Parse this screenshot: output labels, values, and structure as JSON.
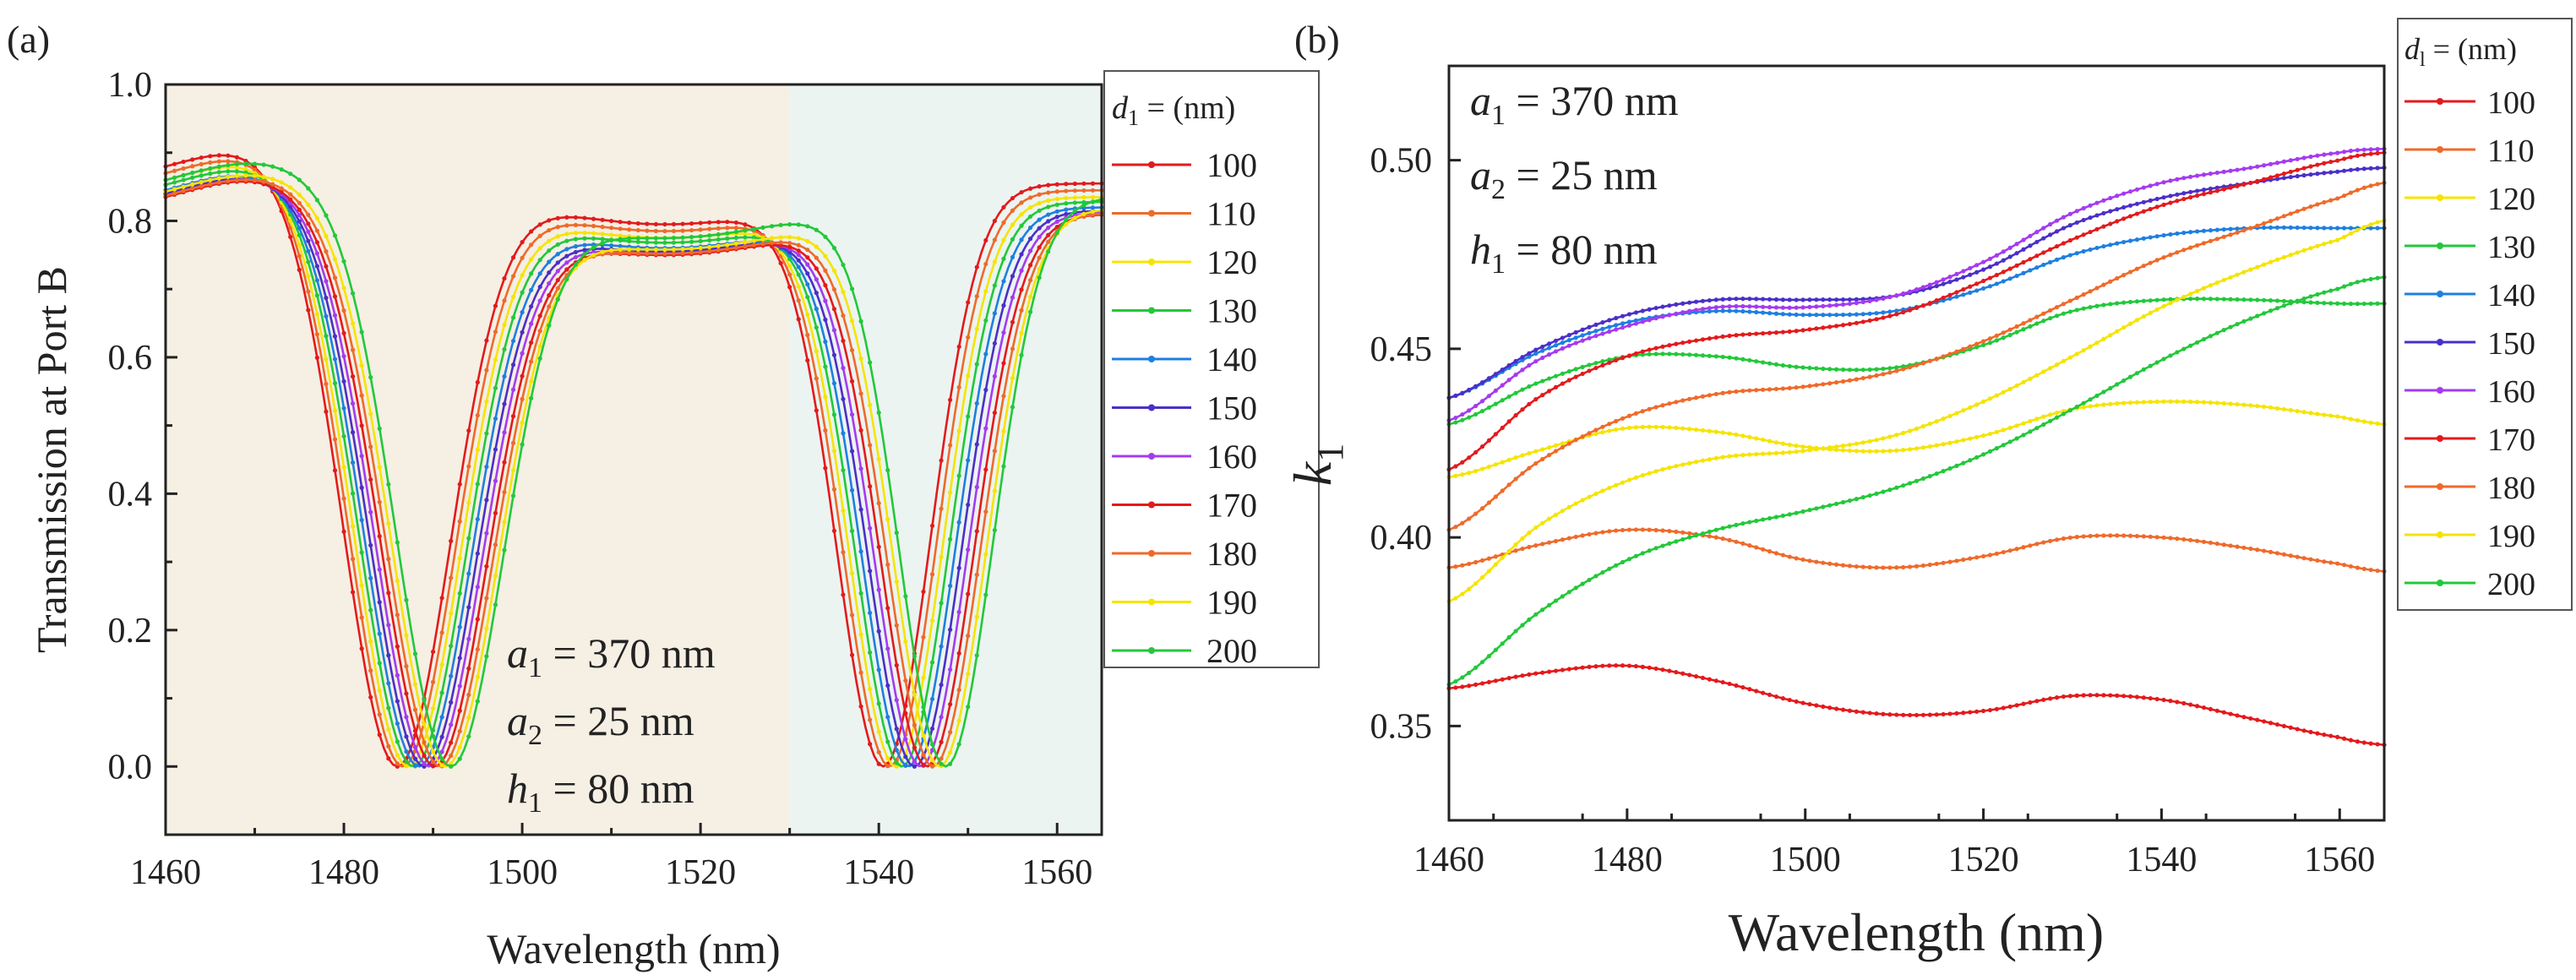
{
  "chart_data": [
    {
      "type": "line",
      "panel_label": "(a)",
      "xlabel": "Wavelength (nm)",
      "ylabel": "Transmission at Port B",
      "xlim": [
        1460,
        1565
      ],
      "ylim": [
        -0.1,
        1.0
      ],
      "xticks": [
        "1460",
        "1480",
        "1500",
        "1520",
        "1540",
        "1560"
      ],
      "yticks": [
        "0.0",
        "0.2",
        "0.4",
        "0.6",
        "0.8",
        "1.0"
      ],
      "shaded_regions": [
        {
          "x_from": 1460,
          "x_to": 1530,
          "color": "#f5efe4"
        },
        {
          "x_from": 1530,
          "x_to": 1565,
          "color": "#ecf4f1"
        }
      ],
      "legend_title": {
        "var": "d",
        "sub": "1",
        "rest": " =  (nm)"
      },
      "annotation": [
        {
          "var": "a",
          "sub": "1",
          "rest": " = 370 nm"
        },
        {
          "var": "a",
          "sub": "2",
          "rest": " = 25 nm"
        },
        {
          "var": "h",
          "sub": "1",
          "rest": " = 80 nm"
        }
      ],
      "model": {
        "dip1_center": [
          1487,
          1493
        ],
        "dip2_center": [
          1540.5,
          1548
        ],
        "dip1_halfwidth": 8.5,
        "dip2_halfwidth": 7.5
      },
      "series": [
        {
          "name": "100",
          "color": "#e31a1c",
          "peak_mid": 0.855,
          "dip1": 1486.0,
          "dip2": 1540.5
        },
        {
          "name": "110",
          "color": "#ef6a2a",
          "peak_mid": 0.845,
          "dip1": 1486.6,
          "dip2": 1541.2
        },
        {
          "name": "120",
          "color": "#f5e400",
          "peak_mid": 0.835,
          "dip1": 1487.2,
          "dip2": 1541.9
        },
        {
          "name": "130",
          "color": "#22c83a",
          "peak_mid": 0.828,
          "dip1": 1487.8,
          "dip2": 1542.6
        },
        {
          "name": "140",
          "color": "#1e7fe0",
          "peak_mid": 0.82,
          "dip1": 1488.4,
          "dip2": 1543.3
        },
        {
          "name": "150",
          "color": "#4b2fc8",
          "peak_mid": 0.815,
          "dip1": 1489.0,
          "dip2": 1544.0
        },
        {
          "name": "160",
          "color": "#a43bf0",
          "peak_mid": 0.812,
          "dip1": 1489.6,
          "dip2": 1544.7
        },
        {
          "name": "170",
          "color": "#e31a1c",
          "peak_mid": 0.81,
          "dip1": 1490.2,
          "dip2": 1545.4
        },
        {
          "name": "180",
          "color": "#ef6a2a",
          "peak_mid": 0.812,
          "dip1": 1490.8,
          "dip2": 1546.1
        },
        {
          "name": "190",
          "color": "#f5e400",
          "peak_mid": 0.818,
          "dip1": 1491.4,
          "dip2": 1546.8
        },
        {
          "name": "200",
          "color": "#22c83a",
          "peak_mid": 0.835,
          "dip1": 1492.0,
          "dip2": 1547.5
        }
      ]
    },
    {
      "type": "line",
      "panel_label": "(b)",
      "xlabel": "Wavelength (nm)",
      "ylabel": "k",
      "ylabel_sub": "1",
      "xlim": [
        1460,
        1565
      ],
      "ylim": [
        0.325,
        0.525
      ],
      "xticks": [
        "1460",
        "1480",
        "1500",
        "1520",
        "1540",
        "1560"
      ],
      "yticks": [
        "0.35",
        "0.40",
        "0.45",
        "0.50"
      ],
      "legend_title": {
        "var": "d",
        "sub": "l",
        "rest": " =  (nm)"
      },
      "annotation": [
        {
          "var": "a",
          "sub": "1",
          "rest": " = 370 nm"
        },
        {
          "var": "a",
          "sub": "2",
          "rest": " = 25 nm"
        },
        {
          "var": "h",
          "sub": "1",
          "rest": " = 80 nm"
        }
      ],
      "x": [
        1460,
        1470,
        1480,
        1490,
        1500,
        1510,
        1520,
        1530,
        1540,
        1550,
        1560,
        1565
      ],
      "series": [
        {
          "name": "100",
          "color": "#e31a1c",
          "values": [
            0.36,
            0.364,
            0.366,
            0.362,
            0.356,
            0.353,
            0.354,
            0.358,
            0.357,
            0.352,
            0.347,
            0.345
          ]
        },
        {
          "name": "110",
          "color": "#ef6a2a",
          "values": [
            0.392,
            0.398,
            0.402,
            0.4,
            0.394,
            0.392,
            0.395,
            0.4,
            0.4,
            0.397,
            0.393,
            0.391
          ]
        },
        {
          "name": "120",
          "color": "#f5e400",
          "values": [
            0.416,
            0.423,
            0.429,
            0.428,
            0.424,
            0.423,
            0.427,
            0.434,
            0.436,
            0.435,
            0.432,
            0.43
          ]
        },
        {
          "name": "130",
          "color": "#22c83a",
          "values": [
            0.43,
            0.441,
            0.448,
            0.448,
            0.445,
            0.445,
            0.451,
            0.46,
            0.463,
            0.463,
            0.462,
            0.462
          ]
        },
        {
          "name": "140",
          "color": "#1e7fe0",
          "values": [
            0.437,
            0.449,
            0.457,
            0.46,
            0.459,
            0.46,
            0.466,
            0.475,
            0.48,
            0.482,
            0.482,
            0.482
          ]
        },
        {
          "name": "150",
          "color": "#4b2fc8",
          "values": [
            0.437,
            0.45,
            0.459,
            0.463,
            0.463,
            0.464,
            0.471,
            0.483,
            0.49,
            0.494,
            0.497,
            0.498
          ]
        },
        {
          "name": "160",
          "color": "#a43bf0",
          "values": [
            0.431,
            0.447,
            0.456,
            0.461,
            0.461,
            0.464,
            0.473,
            0.486,
            0.494,
            0.498,
            0.502,
            0.503
          ]
        },
        {
          "name": "170",
          "color": "#e31a1c",
          "values": [
            0.418,
            0.437,
            0.448,
            0.453,
            0.455,
            0.459,
            0.468,
            0.479,
            0.488,
            0.494,
            0.5,
            0.502
          ]
        },
        {
          "name": "180",
          "color": "#ef6a2a",
          "values": [
            0.402,
            0.42,
            0.432,
            0.438,
            0.44,
            0.444,
            0.452,
            0.463,
            0.474,
            0.482,
            0.49,
            0.494
          ]
        },
        {
          "name": "190",
          "color": "#f5e400",
          "values": [
            0.383,
            0.403,
            0.415,
            0.421,
            0.423,
            0.427,
            0.436,
            0.448,
            0.461,
            0.471,
            0.479,
            0.484
          ]
        },
        {
          "name": "200",
          "color": "#22c83a",
          "values": [
            0.361,
            0.38,
            0.394,
            0.402,
            0.407,
            0.413,
            0.422,
            0.434,
            0.447,
            0.458,
            0.466,
            0.469
          ]
        }
      ]
    }
  ]
}
